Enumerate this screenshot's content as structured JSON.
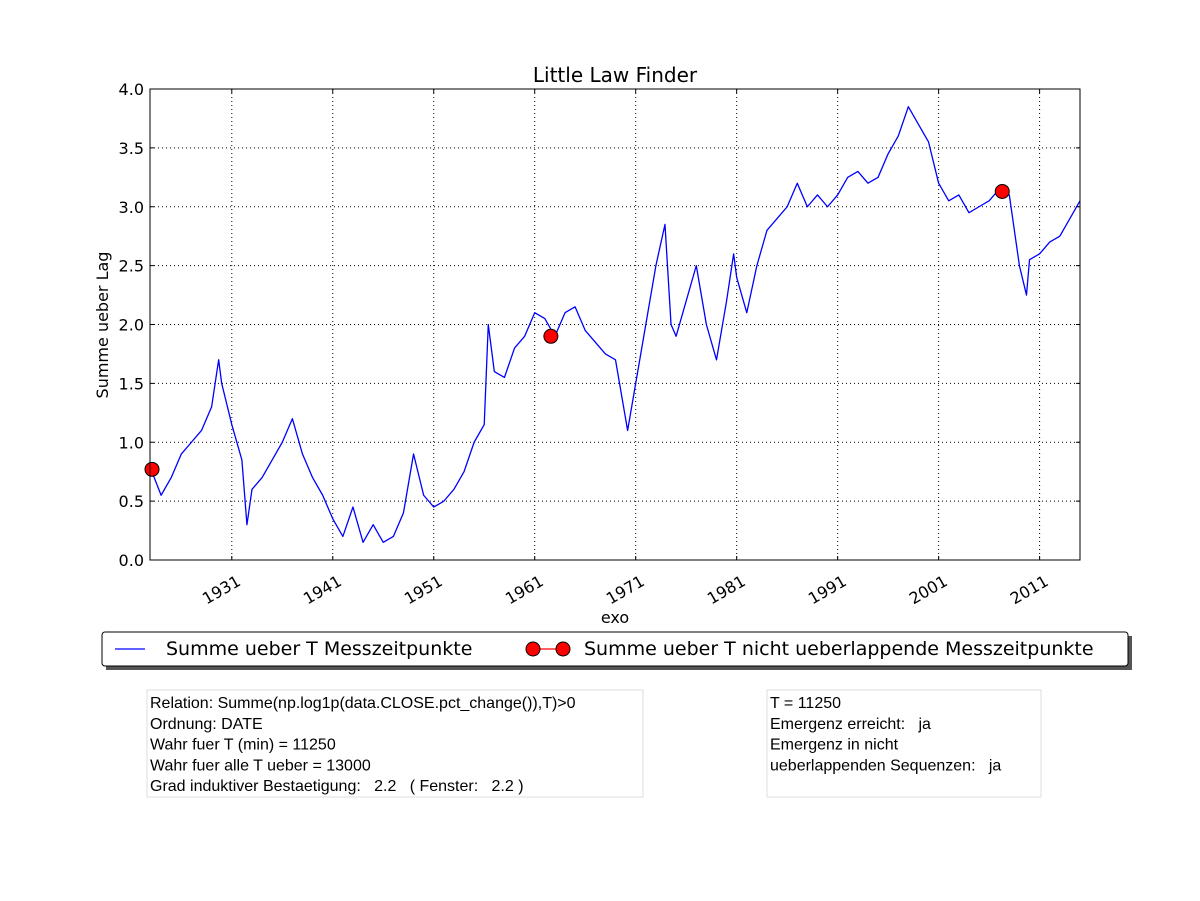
{
  "chart_data": {
    "type": "line",
    "title": "Little Law Finder",
    "x_label": "exo",
    "y_label": "Summe ueber Lag",
    "xlim": [
      1922.9,
      2015.0
    ],
    "xticks": [
      1931,
      1941,
      1951,
      1961,
      1971,
      1981,
      1991,
      2001,
      2011
    ],
    "ylim": [
      0,
      4
    ],
    "yticks": [
      {
        "value": 0,
        "label": "0.0"
      },
      {
        "value": 0.5,
        "label": "0.5"
      },
      {
        "value": 1,
        "label": "1.0"
      },
      {
        "value": 1.5,
        "label": "1.5"
      },
      {
        "value": 2,
        "label": "2.0"
      },
      {
        "value": 2.5,
        "label": "2.5"
      },
      {
        "value": 3,
        "label": "3.0"
      },
      {
        "value": 3.5,
        "label": "3.5"
      },
      {
        "value": 4,
        "label": "4.0"
      }
    ],
    "grid": true,
    "legend": "below",
    "series": [
      {
        "name": "Summe ueber T Messzeitpunkte",
        "color": "#0000ff",
        "marker": false,
        "x": [
          1923,
          1924,
          1925,
          1926,
          1927,
          1928,
          1929,
          1929.7,
          1930,
          1931,
          1932,
          1932.5,
          1933,
          1934,
          1935,
          1936,
          1937,
          1938,
          1939,
          1940,
          1941,
          1942,
          1943,
          1944,
          1945,
          1946,
          1947,
          1948,
          1949,
          1950,
          1951,
          1952,
          1953,
          1954,
          1955,
          1956,
          1956.4,
          1957,
          1958,
          1959,
          1960,
          1961,
          1962,
          1963,
          1964,
          1965,
          1966,
          1967,
          1968,
          1969,
          1970.2,
          1971,
          1972,
          1973,
          1973.9,
          1974.5,
          1975,
          1976,
          1977,
          1978,
          1979,
          1980,
          1980.7,
          1981,
          1982,
          1983,
          1984,
          1985,
          1986,
          1987,
          1988,
          1989,
          1990,
          1991,
          1992,
          1993,
          1994,
          1995,
          1996,
          1997,
          1998,
          1999,
          2000,
          2001,
          2002,
          2003,
          2004,
          2005,
          2006,
          2007,
          2008,
          2009,
          2009.7,
          2010,
          2011,
          2012,
          2013,
          2014,
          2015
        ],
        "values": [
          0.77,
          0.55,
          0.7,
          0.9,
          1.0,
          1.1,
          1.3,
          1.7,
          1.5,
          1.15,
          0.85,
          0.3,
          0.6,
          0.7,
          0.85,
          1.0,
          1.2,
          0.9,
          0.7,
          0.55,
          0.35,
          0.2,
          0.45,
          0.15,
          0.3,
          0.15,
          0.2,
          0.4,
          0.9,
          0.55,
          0.45,
          0.5,
          0.6,
          0.75,
          1.0,
          1.15,
          2.0,
          1.6,
          1.55,
          1.8,
          1.9,
          2.1,
          2.05,
          1.9,
          2.1,
          2.15,
          1.95,
          1.85,
          1.75,
          1.7,
          1.1,
          1.5,
          2.0,
          2.5,
          2.85,
          2.0,
          1.9,
          2.2,
          2.5,
          2.0,
          1.7,
          2.2,
          2.6,
          2.4,
          2.1,
          2.5,
          2.8,
          2.9,
          3.0,
          3.2,
          3.0,
          3.1,
          3.0,
          3.1,
          3.25,
          3.3,
          3.2,
          3.25,
          3.45,
          3.6,
          3.85,
          3.7,
          3.55,
          3.2,
          3.05,
          3.1,
          2.95,
          3.0,
          3.05,
          3.15,
          3.1,
          2.5,
          2.25,
          2.55,
          2.6,
          2.7,
          2.75,
          2.9,
          3.05
        ]
      },
      {
        "name": "Summe ueber T nicht ueberlappende Messzeitpunkte",
        "color": "#ff0000",
        "marker": true,
        "x": [
          1923.1,
          1962.6,
          2007.3
        ],
        "values": [
          0.77,
          1.9,
          3.13
        ]
      }
    ],
    "annotations": [
      {
        "lines": [
          "Relation: Summe(np.log1p(data.CLOSE.pct_change()),T)>0",
          "Ordnung: DATE",
          "Wahr fuer T (min) = 11250",
          "Wahr fuer alle T ueber = 13000",
          "Grad induktiver Bestaetigung:   2.2   ( Fenster:   2.2 )"
        ]
      },
      {
        "lines": [
          "T = 11250",
          "Emergenz erreicht:   ja",
          "Emergenz in nicht",
          "ueberlappenden Sequenzen:   ja"
        ]
      }
    ]
  }
}
